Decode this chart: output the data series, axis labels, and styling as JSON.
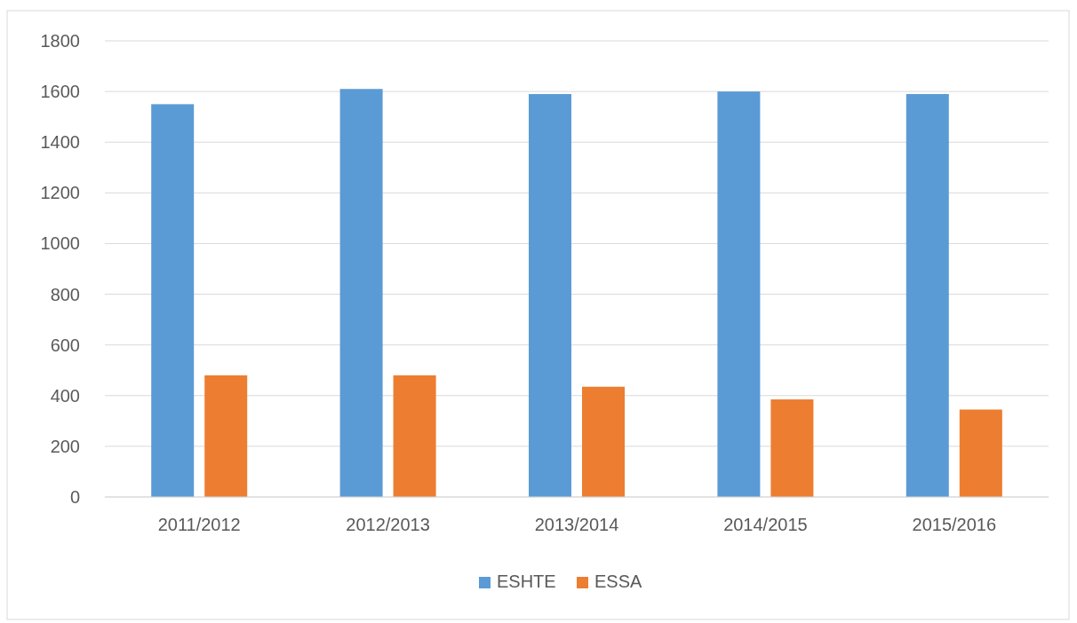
{
  "chart_data": {
    "type": "bar",
    "categories": [
      "2011/2012",
      "2012/2013",
      "2013/2014",
      "2014/2015",
      "2015/2016"
    ],
    "series": [
      {
        "name": "ESHTE",
        "color": "#5b9bd5",
        "values": [
          1550,
          1610,
          1590,
          1600,
          1590
        ]
      },
      {
        "name": "ESSA",
        "color": "#ed7d31",
        "values": [
          480,
          480,
          435,
          385,
          345
        ]
      }
    ],
    "ylim": [
      0,
      1800
    ],
    "yticks": [
      0,
      200,
      400,
      600,
      800,
      1000,
      1200,
      1400,
      1600,
      1800
    ],
    "grid": "y",
    "legend": "bottom"
  }
}
